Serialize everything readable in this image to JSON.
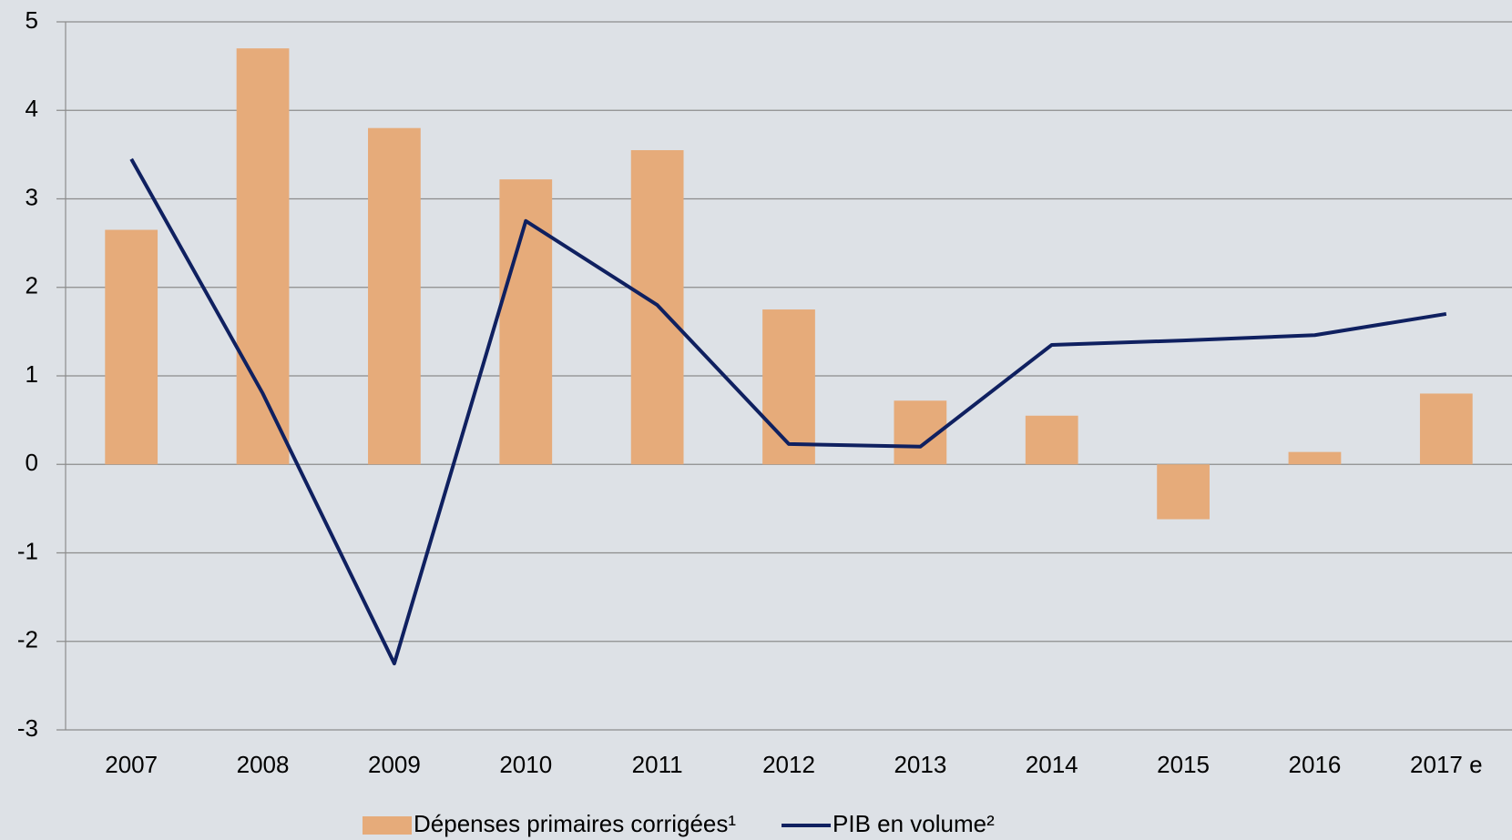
{
  "chart_data": {
    "type": "bar",
    "categories": [
      "2007",
      "2008",
      "2009",
      "2010",
      "2011",
      "2012",
      "2013",
      "2014",
      "2015",
      "2016",
      "2017 e"
    ],
    "series": [
      {
        "name": "Dépenses primaires corrigées¹",
        "color": "#e6ab7a",
        "values": [
          2.65,
          4.7,
          3.8,
          3.22,
          3.55,
          1.75,
          0.72,
          0.55,
          -0.62,
          0.14,
          0.8
        ]
      },
      {
        "name": "PIB en volume²",
        "color": "#0f2060",
        "type": "line",
        "values": [
          3.45,
          0.8,
          -2.25,
          2.75,
          1.8,
          0.23,
          0.2,
          1.35,
          1.4,
          1.46,
          1.7
        ]
      }
    ],
    "ylim": [
      -3,
      5
    ],
    "yticks": [
      -3,
      -2,
      -1,
      0,
      1,
      2,
      3,
      4,
      5
    ],
    "grid": true,
    "legend": "bottom"
  }
}
